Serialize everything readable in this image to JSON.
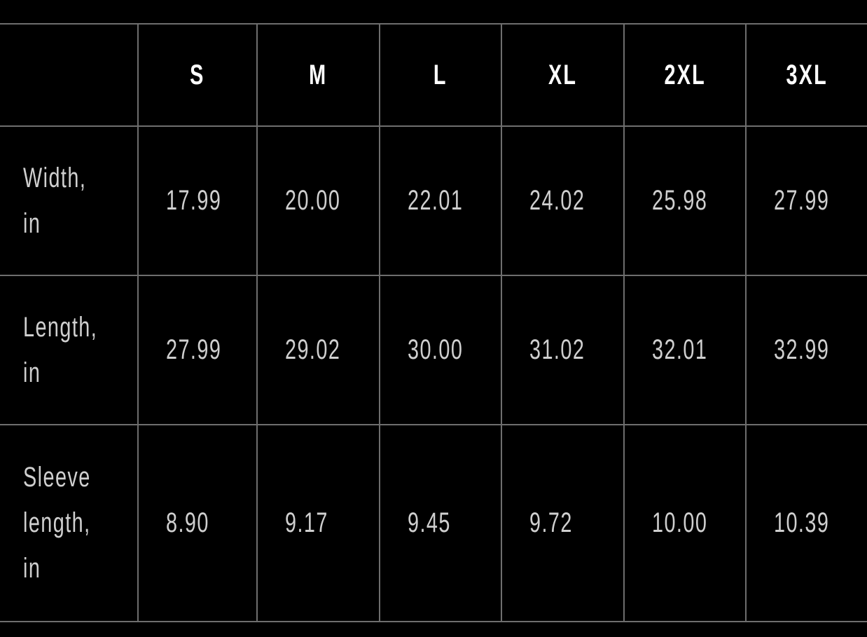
{
  "headers": [
    "",
    "S",
    "M",
    "L",
    "XL",
    "2XL",
    "3XL"
  ],
  "rows": [
    {
      "label": "Width,\nin",
      "values": [
        "17.99",
        "20.00",
        "22.01",
        "24.02",
        "25.98",
        "27.99"
      ]
    },
    {
      "label": "Length,\nin",
      "values": [
        "27.99",
        "29.02",
        "30.00",
        "31.02",
        "32.01",
        "32.99"
      ]
    },
    {
      "label": "Sleeve\nlength,\nin",
      "values": [
        "8.90",
        "9.17",
        "9.45",
        "9.72",
        "10.00",
        "10.39"
      ]
    }
  ],
  "colors": {
    "background": "#000000",
    "grid": "#6e6e6e",
    "header_text": "#ffffff",
    "body_text": "#cfcfcf"
  }
}
